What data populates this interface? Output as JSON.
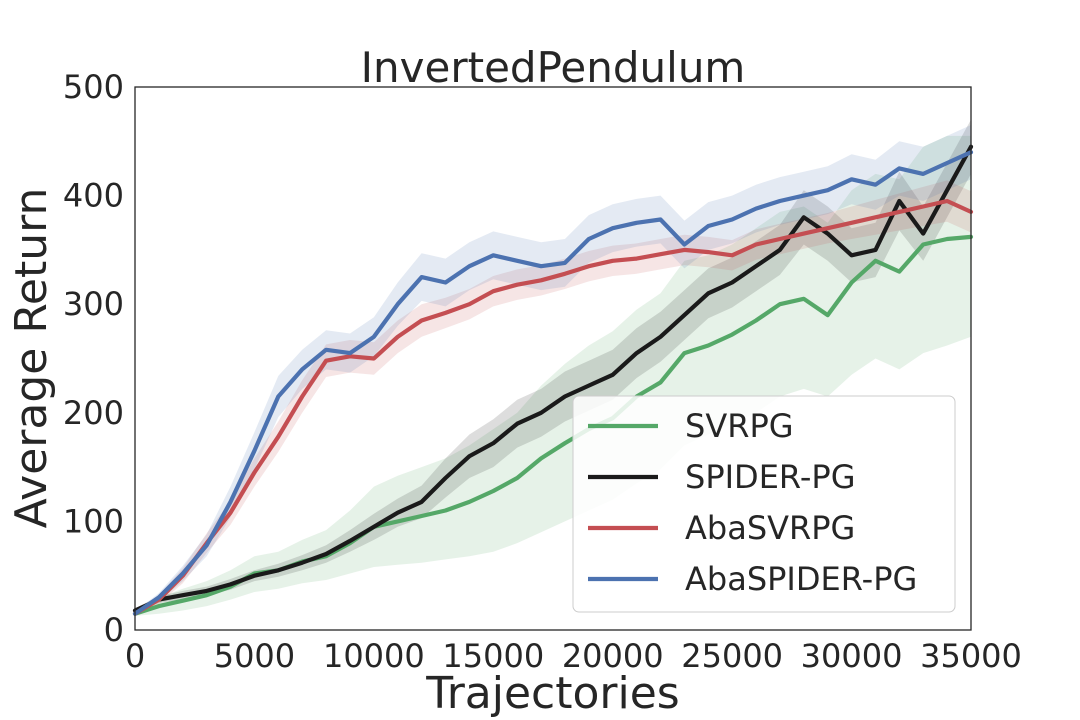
{
  "chart_data": {
    "type": "line",
    "title": "InvertedPendulum",
    "xlabel": "Trajectories",
    "ylabel": "Average Return",
    "xlim": [
      0,
      35000
    ],
    "ylim": [
      0,
      500
    ],
    "xticks": [
      0,
      5000,
      10000,
      15000,
      20000,
      25000,
      30000,
      35000
    ],
    "yticks": [
      0,
      100,
      200,
      300,
      400,
      500
    ],
    "grid": false,
    "legend_position": "lower-right",
    "series": [
      {
        "name": "SVRPG",
        "color": "#55a868",
        "x": [
          0,
          1000,
          2000,
          3000,
          4000,
          5000,
          6000,
          7000,
          8000,
          9000,
          10000,
          11000,
          12000,
          13000,
          14000,
          15000,
          16000,
          17000,
          18000,
          19000,
          20000,
          21000,
          22000,
          23000,
          24000,
          25000,
          26000,
          27000,
          28000,
          29000,
          30000,
          31000,
          32000,
          33000,
          34000,
          35000
        ],
        "y": [
          15,
          22,
          27,
          32,
          40,
          52,
          55,
          63,
          68,
          80,
          95,
          100,
          105,
          110,
          118,
          128,
          140,
          158,
          172,
          185,
          195,
          215,
          228,
          255,
          262,
          272,
          285,
          300,
          305,
          290,
          320,
          340,
          330,
          355,
          360,
          362
        ],
        "lower": [
          13,
          15,
          18,
          22,
          28,
          35,
          38,
          43,
          46,
          52,
          58,
          60,
          62,
          65,
          68,
          72,
          80,
          90,
          100,
          110,
          120,
          135,
          148,
          170,
          180,
          190,
          200,
          215,
          222,
          215,
          235,
          250,
          240,
          255,
          262,
          270
        ],
        "upper": [
          18,
          30,
          38,
          45,
          55,
          68,
          72,
          83,
          92,
          110,
          132,
          142,
          150,
          158,
          170,
          185,
          200,
          225,
          245,
          262,
          275,
          295,
          310,
          340,
          345,
          355,
          370,
          385,
          390,
          375,
          405,
          420,
          415,
          445,
          455,
          455
        ]
      },
      {
        "name": "SPIDER-PG",
        "color": "#1a1a1a",
        "x": [
          0,
          1000,
          2000,
          3000,
          4000,
          5000,
          6000,
          7000,
          8000,
          9000,
          10000,
          11000,
          12000,
          13000,
          14000,
          15000,
          16000,
          17000,
          18000,
          19000,
          20000,
          21000,
          22000,
          23000,
          24000,
          25000,
          26000,
          27000,
          28000,
          29000,
          30000,
          31000,
          32000,
          33000,
          34000,
          35000
        ],
        "y": [
          18,
          28,
          32,
          36,
          42,
          50,
          55,
          62,
          70,
          82,
          95,
          108,
          118,
          140,
          160,
          172,
          190,
          200,
          215,
          225,
          235,
          255,
          270,
          290,
          310,
          320,
          335,
          350,
          380,
          365,
          345,
          350,
          395,
          365,
          405,
          445
        ],
        "lower": [
          16,
          25,
          28,
          32,
          37,
          45,
          49,
          55,
          62,
          72,
          83,
          95,
          103,
          122,
          140,
          150,
          168,
          178,
          192,
          202,
          212,
          232,
          247,
          267,
          287,
          297,
          312,
          327,
          355,
          340,
          320,
          325,
          368,
          340,
          380,
          420
        ],
        "upper": [
          20,
          31,
          36,
          40,
          47,
          55,
          61,
          69,
          78,
          92,
          107,
          121,
          133,
          158,
          180,
          194,
          212,
          222,
          238,
          248,
          258,
          278,
          293,
          313,
          333,
          343,
          358,
          373,
          405,
          390,
          370,
          375,
          422,
          390,
          430,
          470
        ]
      },
      {
        "name": "AbaSVRPG",
        "color": "#c44e52",
        "x": [
          0,
          1000,
          2000,
          3000,
          4000,
          5000,
          6000,
          7000,
          8000,
          9000,
          10000,
          11000,
          12000,
          13000,
          14000,
          15000,
          16000,
          17000,
          18000,
          19000,
          20000,
          21000,
          22000,
          23000,
          24000,
          25000,
          26000,
          27000,
          28000,
          29000,
          30000,
          31000,
          32000,
          33000,
          34000,
          35000
        ],
        "y": [
          15,
          28,
          50,
          80,
          108,
          145,
          178,
          215,
          248,
          252,
          250,
          270,
          285,
          292,
          300,
          312,
          318,
          322,
          328,
          335,
          340,
          342,
          346,
          350,
          348,
          345,
          355,
          360,
          365,
          370,
          375,
          380,
          385,
          390,
          395,
          385
        ],
        "lower": [
          13,
          24,
          43,
          71,
          97,
          132,
          164,
          200,
          233,
          237,
          235,
          255,
          270,
          278,
          286,
          298,
          304,
          308,
          314,
          321,
          326,
          328,
          332,
          336,
          334,
          331,
          341,
          346,
          351,
          356,
          360,
          364,
          368,
          372,
          376,
          366
        ],
        "upper": [
          17,
          32,
          57,
          89,
          119,
          158,
          192,
          230,
          263,
          267,
          265,
          285,
          300,
          306,
          314,
          326,
          332,
          336,
          342,
          349,
          354,
          356,
          360,
          364,
          362,
          359,
          369,
          374,
          379,
          384,
          390,
          396,
          402,
          408,
          414,
          404
        ]
      },
      {
        "name": "AbaSPIDER-PG",
        "color": "#4c72b0",
        "x": [
          0,
          1000,
          2000,
          3000,
          4000,
          5000,
          6000,
          7000,
          8000,
          9000,
          10000,
          11000,
          12000,
          13000,
          14000,
          15000,
          16000,
          17000,
          18000,
          19000,
          20000,
          21000,
          22000,
          23000,
          24000,
          25000,
          26000,
          27000,
          28000,
          29000,
          30000,
          31000,
          32000,
          33000,
          34000,
          35000
        ],
        "y": [
          15,
          30,
          52,
          78,
          118,
          165,
          215,
          240,
          258,
          255,
          270,
          300,
          325,
          320,
          335,
          345,
          340,
          335,
          338,
          360,
          370,
          375,
          378,
          355,
          372,
          378,
          388,
          395,
          400,
          405,
          415,
          410,
          425,
          420,
          430,
          440
        ],
        "lower": [
          13,
          26,
          45,
          68,
          104,
          148,
          196,
          222,
          240,
          237,
          252,
          280,
          303,
          298,
          313,
          323,
          318,
          313,
          316,
          338,
          348,
          353,
          356,
          333,
          350,
          356,
          366,
          373,
          378,
          383,
          392,
          387,
          400,
          395,
          405,
          415
        ],
        "upper": [
          17,
          34,
          59,
          88,
          132,
          182,
          234,
          258,
          276,
          273,
          288,
          320,
          347,
          342,
          357,
          367,
          362,
          357,
          360,
          382,
          392,
          397,
          400,
          377,
          394,
          400,
          410,
          417,
          422,
          427,
          438,
          433,
          450,
          445,
          455,
          465
        ]
      }
    ]
  }
}
